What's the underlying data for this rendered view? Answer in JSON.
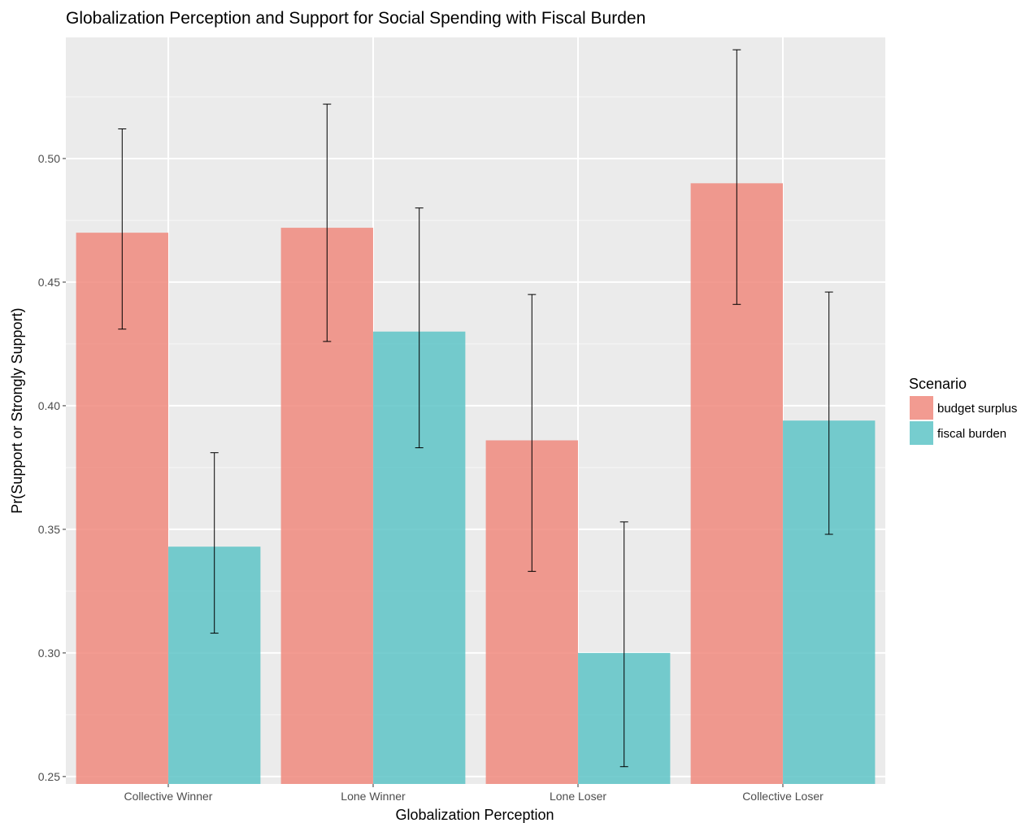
{
  "chart_data": {
    "type": "bar",
    "title": "Globalization Perception and Support for Social Spending with Fiscal Burden",
    "xlabel": "Globalization Perception",
    "ylabel": "Pr(Support or Strongly Support)",
    "categories": [
      "Collective Winner",
      "Lone Winner",
      "Lone Loser",
      "Collective Loser"
    ],
    "ylim": [
      0.247,
      0.549
    ],
    "yticks": [
      0.25,
      0.3,
      0.35,
      0.4,
      0.45,
      0.5
    ],
    "ytick_labels": [
      "0.25",
      "0.30",
      "0.35",
      "0.40",
      "0.45",
      "0.50"
    ],
    "grid": true,
    "legend": {
      "title": "Scenario",
      "position": "right"
    },
    "series": [
      {
        "name": "budget surplus",
        "color": "#f08a7e",
        "values": [
          0.47,
          0.472,
          0.386,
          0.49
        ],
        "error_low": [
          0.431,
          0.426,
          0.333,
          0.441
        ],
        "error_high": [
          0.512,
          0.522,
          0.445,
          0.544
        ]
      },
      {
        "name": "fiscal burden",
        "color": "#5ec4c7",
        "values": [
          0.343,
          0.43,
          0.3,
          0.394
        ],
        "error_low": [
          0.308,
          0.383,
          0.254,
          0.348
        ],
        "error_high": [
          0.381,
          0.48,
          0.353,
          0.446
        ]
      }
    ]
  }
}
